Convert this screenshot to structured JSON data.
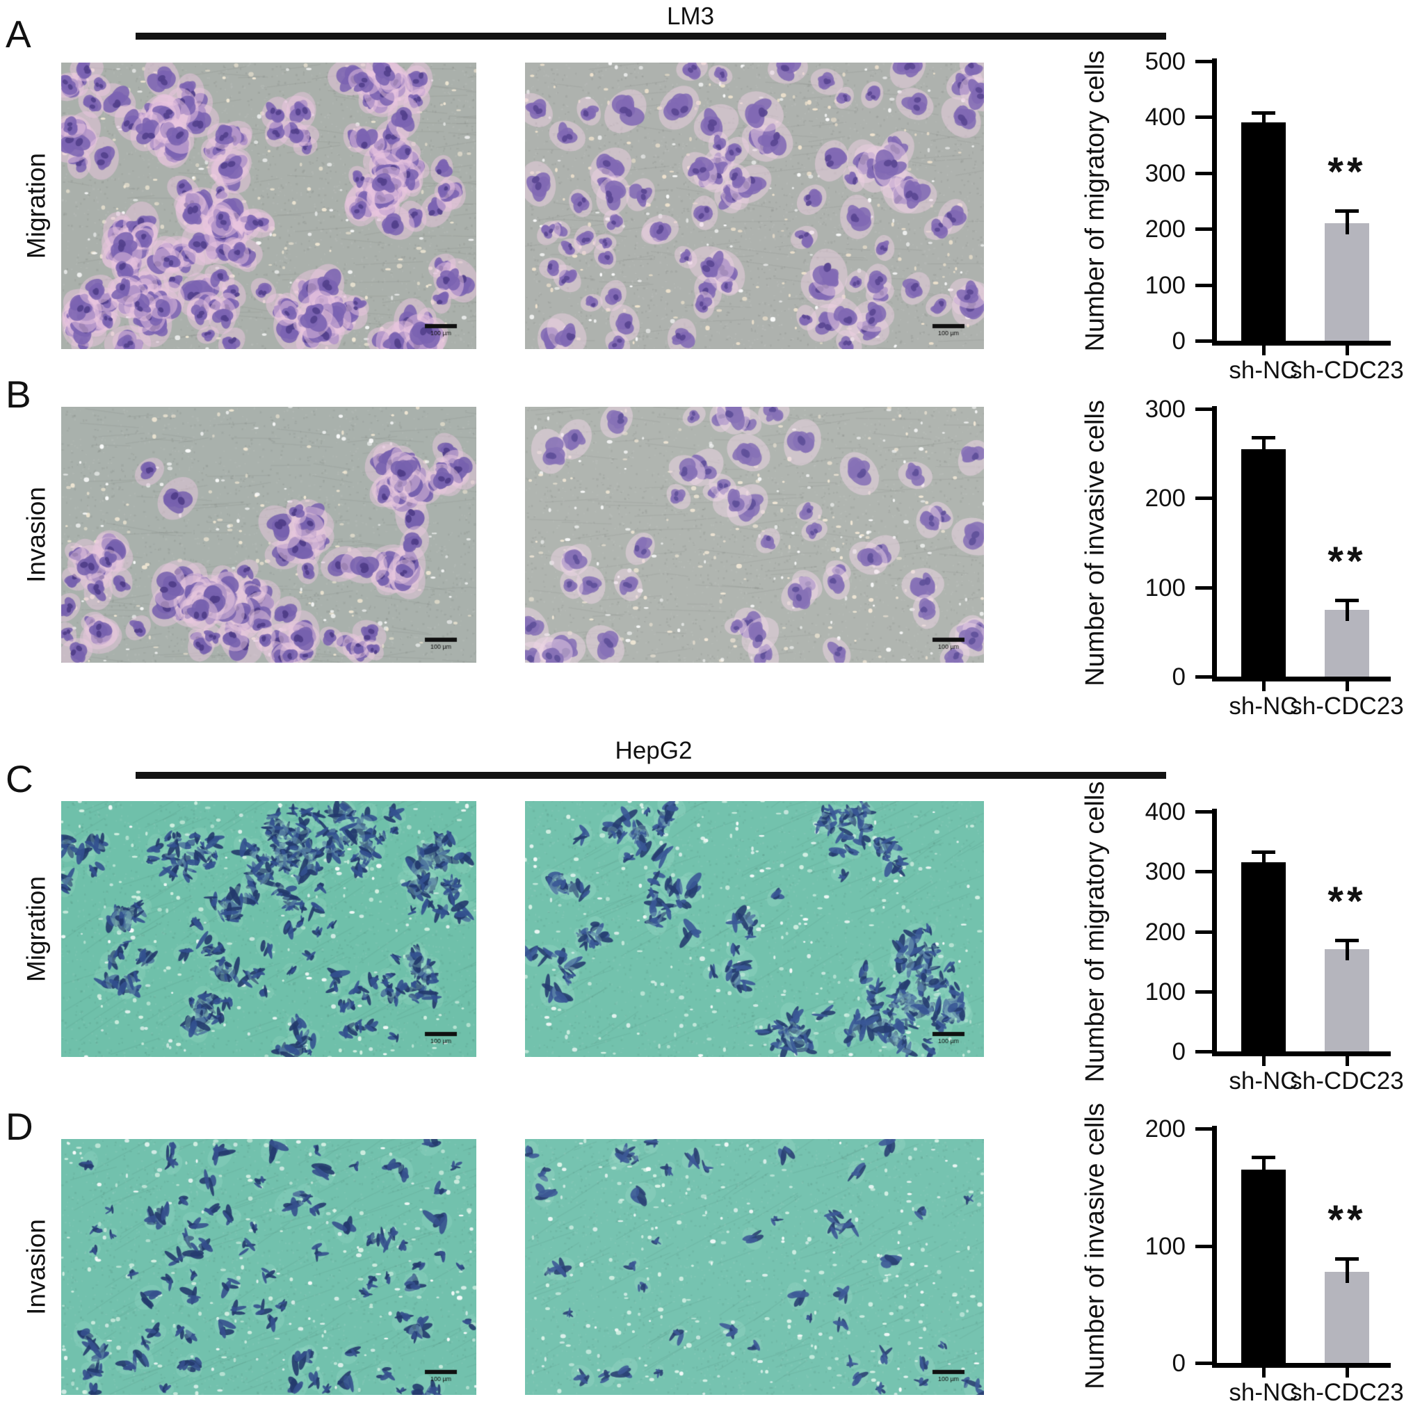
{
  "figure": {
    "section_headers": [
      {
        "label": "LM3"
      },
      {
        "label": "HepG2"
      }
    ],
    "rows": [
      {
        "panel": "A",
        "assay": "Migration",
        "cell_line": "LM3"
      },
      {
        "panel": "B",
        "assay": "Invasion",
        "cell_line": "LM3"
      },
      {
        "panel": "C",
        "assay": "Migration",
        "cell_line": "HepG2"
      },
      {
        "panel": "D",
        "assay": "Invasion",
        "cell_line": "HepG2"
      }
    ],
    "groups": [
      "sh-NC",
      "sh-CDC23"
    ],
    "scale_bar_label": "100 µm",
    "significance_label": "**"
  },
  "chart_data": [
    {
      "type": "bar",
      "panel": "A",
      "cell_line": "LM3",
      "title": "",
      "xlabel": "",
      "ylabel": "Number of migratory cells",
      "categories": [
        "sh-NC",
        "sh-CDC23"
      ],
      "values": [
        390,
        210
      ],
      "errors": [
        20,
        25
      ],
      "ylim": [
        0,
        500
      ],
      "yticks": [
        0,
        100,
        200,
        300,
        400,
        500
      ],
      "bar_colors": [
        "#000000",
        "#b5b5bd"
      ],
      "significance": {
        "bar_index": 1,
        "label": "**"
      },
      "grid": false,
      "legend": false
    },
    {
      "type": "bar",
      "panel": "B",
      "cell_line": "LM3",
      "title": "",
      "xlabel": "",
      "ylabel": "Number of invasive cells",
      "categories": [
        "sh-NC",
        "sh-CDC23"
      ],
      "values": [
        255,
        75
      ],
      "errors": [
        15,
        12
      ],
      "ylim": [
        0,
        300
      ],
      "yticks": [
        0,
        100,
        200,
        300
      ],
      "bar_colors": [
        "#000000",
        "#b5b5bd"
      ],
      "significance": {
        "bar_index": 1,
        "label": "**"
      },
      "grid": false,
      "legend": false
    },
    {
      "type": "bar",
      "panel": "C",
      "cell_line": "HepG2",
      "title": "",
      "xlabel": "",
      "ylabel": "Number of migratory cells",
      "categories": [
        "sh-NC",
        "sh-CDC23"
      ],
      "values": [
        315,
        170
      ],
      "errors": [
        20,
        18
      ],
      "ylim": [
        0,
        400
      ],
      "yticks": [
        0,
        100,
        200,
        300,
        400
      ],
      "bar_colors": [
        "#000000",
        "#b5b5bd"
      ],
      "significance": {
        "bar_index": 1,
        "label": "**"
      },
      "grid": false,
      "legend": false
    },
    {
      "type": "bar",
      "panel": "D",
      "cell_line": "HepG2",
      "title": "",
      "xlabel": "",
      "ylabel": "Number of invasive cells",
      "categories": [
        "sh-NC",
        "sh-CDC23"
      ],
      "values": [
        165,
        78
      ],
      "errors": [
        12,
        12
      ],
      "ylim": [
        0,
        200
      ],
      "yticks": [
        0,
        100,
        200
      ],
      "bar_colors": [
        "#000000",
        "#b5b5bd"
      ],
      "significance": {
        "bar_index": 1,
        "label": "**"
      },
      "grid": false,
      "legend": false
    }
  ],
  "micrographs": [
    {
      "id": "A1",
      "panel": "A",
      "group": "sh-NC",
      "stain": "violet",
      "background": "#aab0ab",
      "cell_color": "#7b63b2",
      "cell_core": "#52408c",
      "halo": "#e9c6df",
      "speckle": "#f4ead6",
      "density": 240,
      "clustered": true
    },
    {
      "id": "A2",
      "panel": "A",
      "group": "sh-CDC23",
      "stain": "violet",
      "background": "#aeb2ae",
      "cell_color": "#8169b4",
      "cell_core": "#5a4793",
      "halo": "#ecd0e2",
      "speckle": "#f4e6d0",
      "density": 95,
      "clustered": false
    },
    {
      "id": "B1",
      "panel": "B",
      "group": "sh-NC",
      "stain": "violet",
      "background": "#a9b1ac",
      "cell_color": "#7661ae",
      "cell_core": "#4f3d88",
      "halo": "#e8c8de",
      "speckle": "#f3e9d5",
      "density": 135,
      "clustered": true
    },
    {
      "id": "B2",
      "panel": "B",
      "group": "sh-CDC23",
      "stain": "violet",
      "background": "#b0b5b0",
      "cell_color": "#8671b6",
      "cell_core": "#60509a",
      "halo": "#eed6e6",
      "speckle": "#f5ead8",
      "density": 55,
      "clustered": false
    },
    {
      "id": "C1",
      "panel": "C",
      "group": "sh-NC",
      "stain": "blue",
      "background": "#6fc0aa",
      "cell_color": "#33518f",
      "cell_core": "#22386b",
      "halo": "#9adcc6",
      "speckle": "#d9f3e5",
      "density": 260,
      "clustered": true
    },
    {
      "id": "C2",
      "panel": "C",
      "group": "sh-CDC23",
      "stain": "blue",
      "background": "#73c2ad",
      "cell_color": "#3a5896",
      "cell_core": "#263d70",
      "halo": "#a0decb",
      "speckle": "#dcf4e8",
      "density": 175,
      "clustered": true
    },
    {
      "id": "D1",
      "panel": "D",
      "group": "sh-NC",
      "stain": "blue",
      "background": "#72c1ad",
      "cell_color": "#35508d",
      "cell_core": "#233a6d",
      "halo": "#9cdcc8",
      "speckle": "#daf2e6",
      "density": 95,
      "clustered": false
    },
    {
      "id": "D2",
      "panel": "D",
      "group": "sh-CDC23",
      "stain": "blue",
      "background": "#76c3b0",
      "cell_color": "#3d5a97",
      "cell_core": "#2a4073",
      "halo": "#a4e0cd",
      "speckle": "#def5ea",
      "density": 48,
      "clustered": false
    }
  ]
}
